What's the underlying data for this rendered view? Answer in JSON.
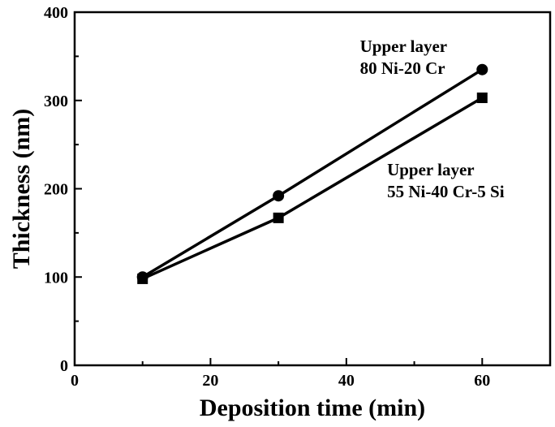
{
  "chart_data": {
    "type": "line",
    "xlabel": "Deposition time (min)",
    "ylabel": "Thickness (nm)",
    "xlim": [
      0,
      70
    ],
    "ylim": [
      0,
      400
    ],
    "x_ticks": [
      0,
      20,
      40,
      60
    ],
    "y_ticks": [
      0,
      100,
      200,
      300,
      400
    ],
    "grid": false,
    "series": [
      {
        "name": "Upper layer 80 Ni-20 Cr",
        "marker": "circle",
        "color": "#000000",
        "x": [
          10,
          30,
          60
        ],
        "y": [
          100,
          192,
          335
        ]
      },
      {
        "name": "Upper layer 55 Ni-40 Cr-5 Si",
        "marker": "square",
        "color": "#000000",
        "x": [
          10,
          30,
          60
        ],
        "y": [
          98,
          167,
          303
        ]
      }
    ],
    "annotations": [
      {
        "lines": [
          "Upper layer",
          "80 Ni-20 Cr"
        ],
        "x": 42,
        "y": 355
      },
      {
        "lines": [
          "Upper layer",
          "55 Ni-40 Cr-5 Si"
        ],
        "x": 46,
        "y": 215
      }
    ]
  }
}
